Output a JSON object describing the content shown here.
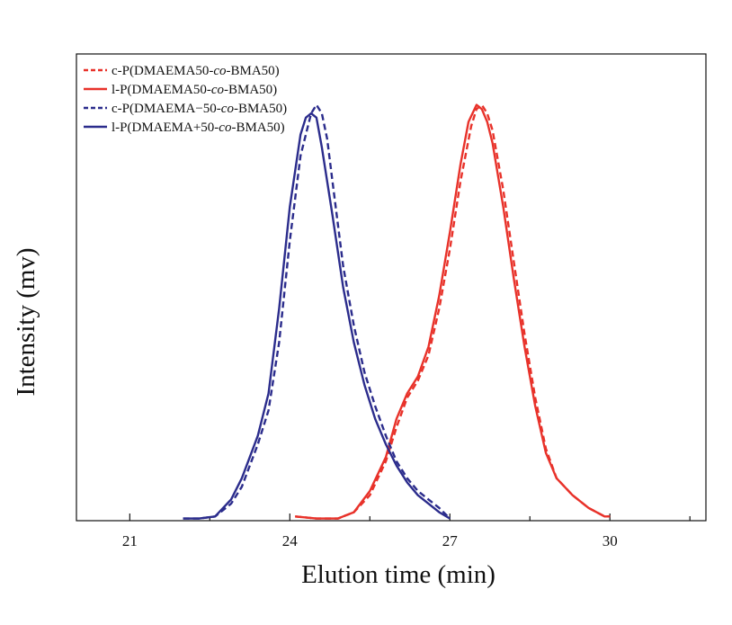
{
  "chart_data": {
    "type": "line",
    "title": "",
    "xlabel": "Elution time (min)",
    "ylabel": "Intensity (mv)",
    "xlim": [
      20,
      31.8
    ],
    "ylim": [
      0,
      1.1
    ],
    "xticks": [
      21,
      24,
      27,
      30
    ],
    "xtick_labels": [
      "21",
      "24",
      "27",
      "30"
    ],
    "yticks_shown": false,
    "grid": false,
    "legend_position": "top-left",
    "series": [
      {
        "name": "c-P(DMAEMA50-co-BMA50)",
        "name_parts": [
          [
            "c-P(DMAEMA50-",
            false
          ],
          [
            "co",
            true
          ],
          [
            "-BMA50)",
            false
          ]
        ],
        "color": "#e8322a",
        "dash": "dashed",
        "x": [
          24.1,
          24.5,
          24.9,
          25.2,
          25.5,
          25.8,
          26.0,
          26.2,
          26.4,
          26.6,
          26.8,
          27.0,
          27.2,
          27.4,
          27.5,
          27.6,
          27.7,
          27.8,
          28.0,
          28.2,
          28.4,
          28.6,
          28.8,
          29.0,
          29.3,
          29.6,
          29.9,
          30.0
        ],
        "y": [
          0.01,
          0.005,
          0.005,
          0.02,
          0.06,
          0.14,
          0.22,
          0.29,
          0.33,
          0.39,
          0.5,
          0.64,
          0.8,
          0.93,
          0.97,
          0.98,
          0.96,
          0.92,
          0.78,
          0.61,
          0.44,
          0.29,
          0.17,
          0.1,
          0.06,
          0.03,
          0.01,
          0.01
        ]
      },
      {
        "name": "l-P(DMAEMA50-co-BMA50)",
        "name_parts": [
          [
            "l-P(DMAEMA50-",
            false
          ],
          [
            "co",
            true
          ],
          [
            "-BMA50)",
            false
          ]
        ],
        "color": "#e8322a",
        "dash": "solid",
        "x": [
          24.1,
          24.5,
          24.9,
          25.2,
          25.5,
          25.8,
          26.0,
          26.2,
          26.4,
          26.6,
          26.8,
          27.0,
          27.2,
          27.35,
          27.5,
          27.6,
          27.7,
          27.8,
          28.0,
          28.2,
          28.4,
          28.6,
          28.8,
          29.0,
          29.3,
          29.6,
          29.9,
          30.0
        ],
        "y": [
          0.01,
          0.005,
          0.005,
          0.02,
          0.07,
          0.15,
          0.24,
          0.3,
          0.34,
          0.41,
          0.53,
          0.68,
          0.84,
          0.94,
          0.98,
          0.97,
          0.94,
          0.89,
          0.74,
          0.57,
          0.41,
          0.27,
          0.16,
          0.1,
          0.06,
          0.03,
          0.01,
          0.01
        ]
      },
      {
        "name": "c-P(DMAEMA−50-co-BMA50)",
        "name_parts": [
          [
            "c-P(DMAEMA−50-",
            false
          ],
          [
            "co",
            true
          ],
          [
            "-BMA50)",
            false
          ]
        ],
        "color": "#2b2c8c",
        "dash": "dashed",
        "x": [
          22.0,
          22.3,
          22.6,
          22.9,
          23.1,
          23.4,
          23.6,
          23.8,
          24.0,
          24.2,
          24.4,
          24.5,
          24.6,
          24.7,
          24.8,
          25.0,
          25.2,
          25.4,
          25.6,
          25.8,
          26.0,
          26.2,
          26.4,
          26.6,
          26.8,
          27.0
        ],
        "y": [
          0.005,
          0.005,
          0.01,
          0.04,
          0.08,
          0.18,
          0.26,
          0.42,
          0.66,
          0.86,
          0.96,
          0.98,
          0.96,
          0.9,
          0.8,
          0.6,
          0.46,
          0.35,
          0.27,
          0.2,
          0.14,
          0.1,
          0.07,
          0.05,
          0.03,
          0.005
        ]
      },
      {
        "name": "l-P(DMAEMA+50-co-BMA50)",
        "name_parts": [
          [
            "l-P(DMAEMA+50-",
            false
          ],
          [
            "co",
            true
          ],
          [
            "-BMA50)",
            false
          ]
        ],
        "color": "#2b2c8c",
        "dash": "solid",
        "x": [
          22.0,
          22.3,
          22.6,
          22.9,
          23.1,
          23.4,
          23.6,
          23.8,
          24.0,
          24.2,
          24.3,
          24.4,
          24.5,
          24.6,
          24.8,
          25.0,
          25.2,
          25.4,
          25.6,
          25.8,
          26.0,
          26.2,
          26.4,
          26.6,
          26.8,
          27.0
        ],
        "y": [
          0.005,
          0.005,
          0.01,
          0.05,
          0.1,
          0.2,
          0.3,
          0.5,
          0.74,
          0.91,
          0.95,
          0.96,
          0.95,
          0.88,
          0.72,
          0.55,
          0.42,
          0.32,
          0.24,
          0.18,
          0.13,
          0.09,
          0.06,
          0.04,
          0.02,
          0.005
        ]
      }
    ]
  }
}
